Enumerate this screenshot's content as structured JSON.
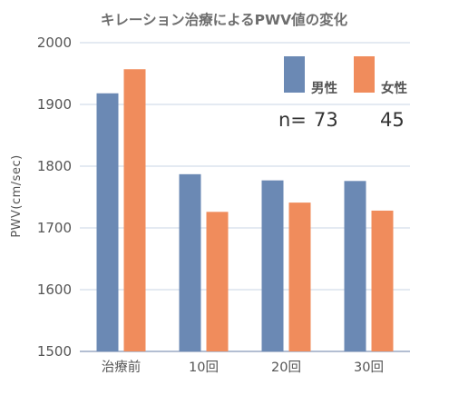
{
  "chart_data": {
    "type": "bar",
    "title": "キレーション治療によるPWV値の変化",
    "ylabel": "PWV(cm/sec)",
    "xlabel": "",
    "categories": [
      "治療前",
      "10回",
      "20回",
      "30回"
    ],
    "series": [
      {
        "name": "男性",
        "values": [
          1918,
          1787,
          1777,
          1776
        ],
        "color": "#6b89b4"
      },
      {
        "name": "女性",
        "values": [
          1957,
          1726,
          1741,
          1728
        ],
        "color": "#f08c5c"
      }
    ],
    "ylim": [
      1500,
      2000
    ],
    "yticks": [
      "1500",
      "1600",
      "1700",
      "1800",
      "1900",
      "2000"
    ],
    "grid": true,
    "legend_position": "top-right",
    "n_label": "n=",
    "n_values": [
      "73",
      "45"
    ]
  }
}
